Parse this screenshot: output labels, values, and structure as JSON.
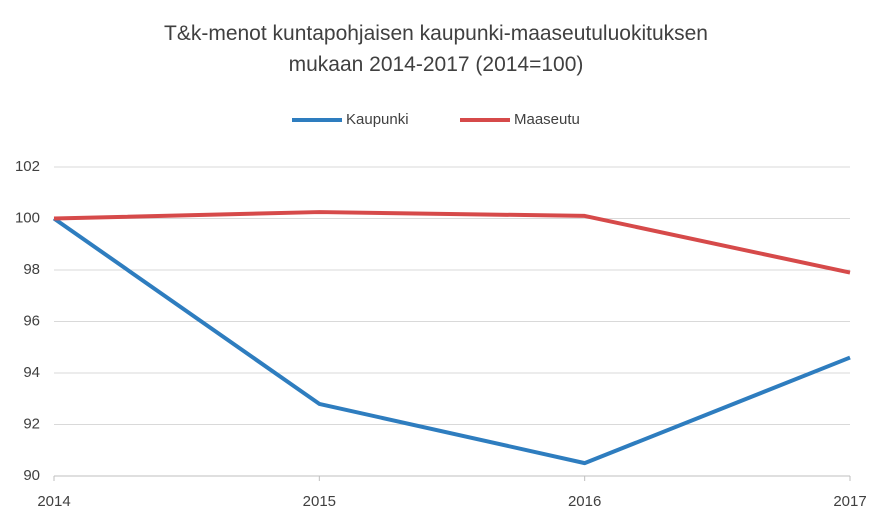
{
  "chart_data": {
    "type": "line",
    "title": "T&k-menot kuntapohjaisen kaupunki-maaseutuluokituksen\nmukaan 2014-2017  (2014=100)",
    "categories": [
      "2014",
      "2015",
      "2016",
      "2017"
    ],
    "series": [
      {
        "name": "Kaupunki",
        "color": "#2e7dbf",
        "values": [
          100,
          92.8,
          90.5,
          94.6
        ]
      },
      {
        "name": "Maaseutu",
        "color": "#d64a4a",
        "values": [
          100,
          100.25,
          100.1,
          97.9
        ]
      }
    ],
    "ylim": [
      90,
      102
    ],
    "yticks": [
      90,
      92,
      94,
      96,
      98,
      100,
      102
    ],
    "grid": true,
    "legend": "top"
  }
}
